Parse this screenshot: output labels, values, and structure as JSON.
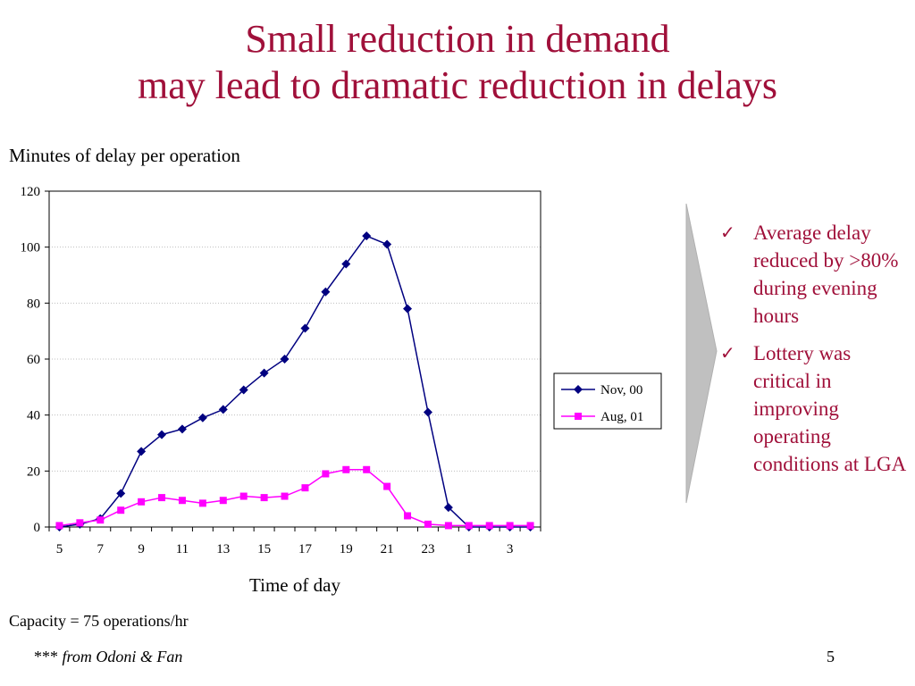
{
  "slide": {
    "title_line1": "Small reduction in demand",
    "title_line2": "may lead to dramatic reduction in delays",
    "capacity_note": "Capacity = 75 operations/hr",
    "source_stars": "***",
    "source_text": "from Odoni & Fan",
    "page_number": "5"
  },
  "bullets": [
    {
      "icon": "checkmark-icon",
      "text": "Average delay reduced by >80% during evening hours"
    },
    {
      "icon": "checkmark-icon",
      "text": "Lottery was critical in improving operating conditions at LGA"
    }
  ],
  "colors": {
    "title": "#a0103a",
    "series_nov": "#000080",
    "series_aug": "#ff00ff",
    "arrow": "#c0c0c0"
  },
  "chart_data": {
    "type": "line",
    "title": "",
    "ylabel": "Minutes of delay per operation",
    "xlabel": "Time of day",
    "ylim": [
      0,
      120
    ],
    "yticks": [
      0,
      20,
      40,
      60,
      80,
      100,
      120
    ],
    "x": [
      5,
      6,
      7,
      8,
      9,
      10,
      11,
      12,
      13,
      14,
      15,
      16,
      17,
      18,
      19,
      20,
      21,
      22,
      23,
      24,
      1,
      2,
      3,
      4
    ],
    "xtick_labels": [
      "5",
      "7",
      "9",
      "11",
      "13",
      "15",
      "17",
      "19",
      "21",
      "23",
      "1",
      "3"
    ],
    "grid": "horizontal",
    "legend_position": "top-right",
    "series": [
      {
        "name": "Nov, 00",
        "marker": "diamond",
        "values": [
          0,
          1,
          3,
          12,
          27,
          33,
          35,
          39,
          42,
          49,
          55,
          60,
          71,
          84,
          94,
          104,
          101,
          78,
          41,
          7,
          0,
          0,
          0,
          0
        ]
      },
      {
        "name": "Aug, 01",
        "marker": "square",
        "values": [
          0.5,
          1.5,
          2.5,
          6,
          9,
          10.5,
          9.5,
          8.5,
          9.5,
          11,
          10.5,
          11,
          14,
          19,
          20.5,
          20.5,
          14.5,
          4,
          1,
          0.5,
          0.5,
          0.5,
          0.5,
          0.5
        ]
      }
    ]
  }
}
